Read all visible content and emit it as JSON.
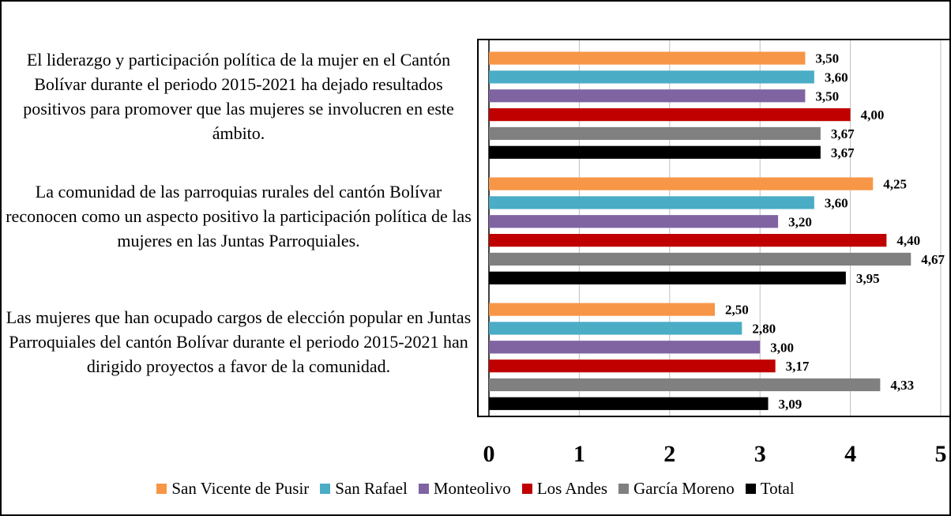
{
  "chart_data": {
    "type": "bar",
    "orientation": "horizontal",
    "categories": [
      "El liderazgo y participación política de la mujer en el Cantón Bolívar durante el periodo 2015-2021 ha dejado resultados positivos para promover que las mujeres se involucren en este ámbito.",
      "La comunidad de las parroquias rurales del cantón Bolívar reconocen como un aspecto positivo la participación política de las mujeres en las Juntas Parroquiales.",
      "Las mujeres que han ocupado cargos de elección popular en Juntas Parroquiales del cantón Bolívar durante el periodo 2015-2021 han dirigido proyectos a favor de la comunidad."
    ],
    "series": [
      {
        "name": "San Vicente de Pusir",
        "color": "#f79646",
        "values": [
          3.5,
          4.25,
          2.5
        ],
        "value_labels": [
          "3,50",
          "4,25",
          "2,50"
        ]
      },
      {
        "name": "San Rafael",
        "color": "#4bacc6",
        "values": [
          3.6,
          3.6,
          2.8
        ],
        "value_labels": [
          "3,60",
          "3,60",
          "2,80"
        ]
      },
      {
        "name": "Monteolivo",
        "color": "#8064a2",
        "values": [
          3.5,
          3.2,
          3.0
        ],
        "value_labels": [
          "3,50",
          "3,20",
          "3,00"
        ]
      },
      {
        "name": "Los Andes",
        "color": "#c00000",
        "values": [
          4.0,
          4.4,
          3.17
        ],
        "value_labels": [
          "4,00",
          "4,40",
          "3,17"
        ]
      },
      {
        "name": "García Moreno",
        "color": "#808080",
        "values": [
          3.67,
          4.67,
          4.33
        ],
        "value_labels": [
          "3,67",
          "4,67",
          "4,33"
        ]
      },
      {
        "name": "Total",
        "color": "#000000",
        "values": [
          3.67,
          3.95,
          3.09
        ],
        "value_labels": [
          "3,67",
          "3,95",
          "3,09"
        ]
      }
    ],
    "xlim": [
      0,
      5
    ],
    "xticks": [
      0,
      1,
      2,
      3,
      4,
      5
    ],
    "grid": true,
    "legend": "bottom"
  }
}
